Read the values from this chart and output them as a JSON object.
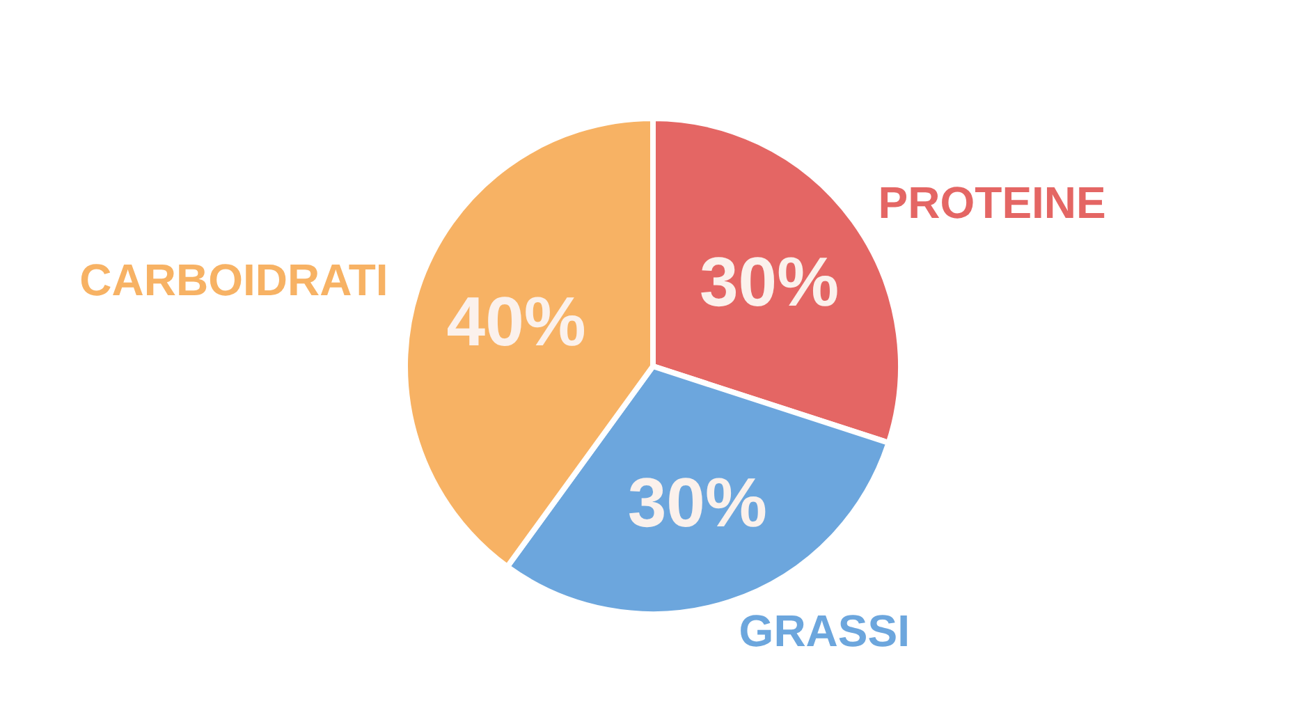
{
  "chart_data": {
    "type": "pie",
    "categories": [
      "PROTEINE",
      "GRASSI",
      "CARBOIDRATI"
    ],
    "values": [
      30,
      30,
      40
    ],
    "colors": [
      "#e46664",
      "#6ca6dd",
      "#f7b264"
    ],
    "value_labels": [
      "30%",
      "30%",
      "40%"
    ]
  }
}
